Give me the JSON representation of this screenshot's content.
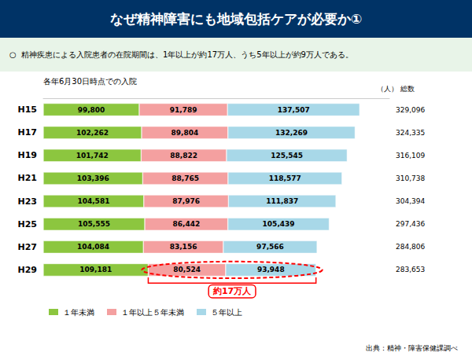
{
  "chart_data": {
    "type": "bar",
    "orientation": "horizontal",
    "stacked": true,
    "data_labels": true,
    "grid": false,
    "legend": "lower left",
    "tick_labels": "y",
    "title": "なぜ精神障害にも地域包括ケアが必要か①",
    "subtitle": "○  精神疾患による入院患者の在院期間は、1年以上が約17万人、うち5年以上が約9万人である。",
    "axis_label": "各年6月30日時点での入院",
    "unit_label": "（人）",
    "total_label": "総数",
    "source": "出典：精神・障害保健課調べ",
    "title_bg_color": "#003366",
    "title_text_color": "#ffffff",
    "subtitle_bg_color": "#e8f4e8",
    "categories": [
      "H15",
      "H17",
      "H19",
      "H21",
      "H23",
      "H25",
      "H27",
      "H29"
    ],
    "xlim": [
      0,
      360000
    ],
    "series": [
      {
        "name": "１年未満",
        "color": "#8cc63f",
        "values": [
          99800,
          102262,
          101742,
          103396,
          104581,
          105555,
          104084,
          109181
        ],
        "value_labels": [
          "99,800",
          "102,262",
          "101,742",
          "103,396",
          "104,581",
          "105,555",
          "104,084",
          "109,181"
        ]
      },
      {
        "name": "１年以上５年未満",
        "color": "#f4a0a0",
        "values": [
          91789,
          89804,
          88822,
          88765,
          87976,
          86442,
          83156,
          80524
        ],
        "value_labels": [
          "91,789",
          "89,804",
          "88,822",
          "88,765",
          "87,976",
          "86,442",
          "83,156",
          "80,524"
        ]
      },
      {
        "name": "５年以上",
        "color": "#a8d8e8",
        "values": [
          137507,
          132269,
          125545,
          118577,
          111837,
          105439,
          97566,
          93948
        ],
        "value_labels": [
          "137,507",
          "132,269",
          "125,545",
          "118,577",
          "111,837",
          "105,439",
          "97,566",
          "93,948"
        ]
      }
    ],
    "totals": [
      {
        "value": 329096,
        "label": "329,096"
      },
      {
        "value": 324335,
        "label": "324,335"
      },
      {
        "value": 316109,
        "label": "316,109"
      },
      {
        "value": 310738,
        "label": "310,738"
      },
      {
        "value": 304394,
        "label": "304,394"
      },
      {
        "value": 297436,
        "label": "297,436"
      },
      {
        "value": 284806,
        "label": "284,806"
      },
      {
        "value": 283653,
        "label": "283,653"
      }
    ],
    "annotation": {
      "text": "約17万人",
      "category": "H29",
      "color": "red"
    }
  }
}
